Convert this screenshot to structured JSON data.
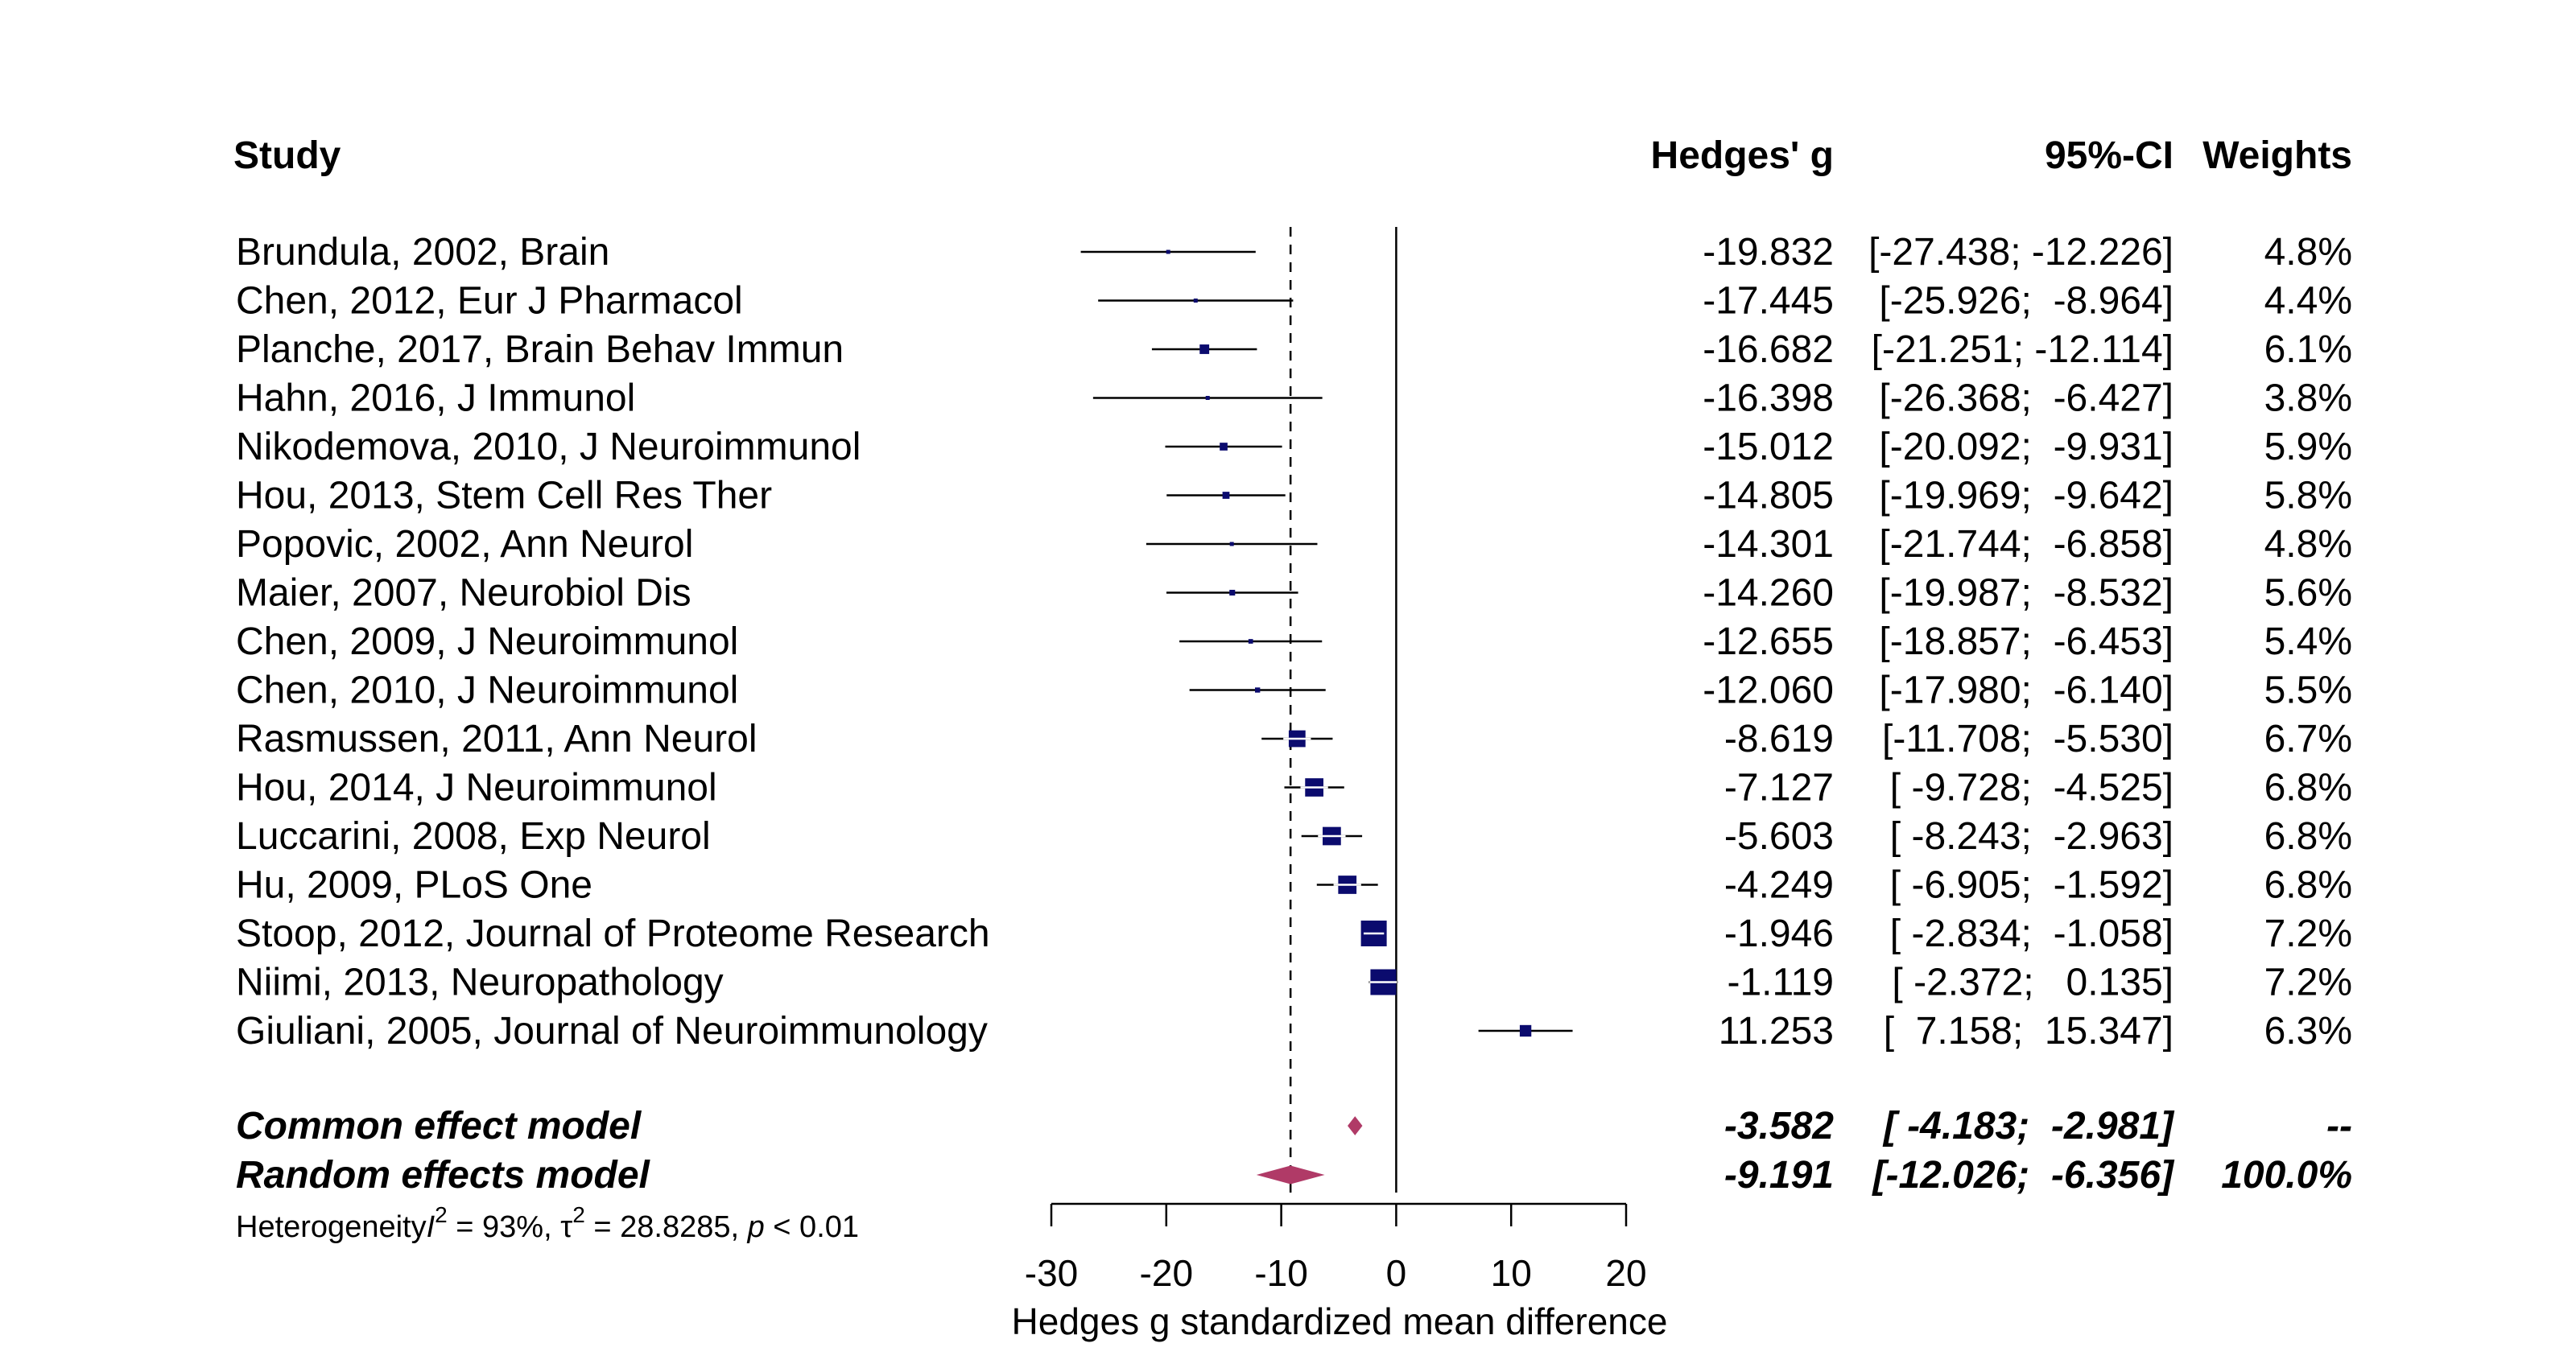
{
  "chart_data": {
    "type": "forest",
    "headers": {
      "study": "Study",
      "effect": "Hedges' g",
      "ci": "95%-CI",
      "weight": "Weights"
    },
    "studies": [
      {
        "label": "Brundula, 2002, Brain",
        "g": -19.832,
        "lower": -27.438,
        "upper": -12.226,
        "g_text": "-19.832",
        "ci_text": "[-27.438; -12.226]",
        "weight_text": "4.8%",
        "weight": 4.8
      },
      {
        "label": "Chen, 2012, Eur J Pharmacol",
        "g": -17.445,
        "lower": -25.926,
        "upper": -8.964,
        "g_text": "-17.445",
        "ci_text": "[-25.926;  -8.964]",
        "weight_text": "4.4%",
        "weight": 4.4
      },
      {
        "label": "Planche, 2017, Brain Behav Immun",
        "g": -16.682,
        "lower": -21.251,
        "upper": -12.114,
        "g_text": "-16.682",
        "ci_text": "[-21.251; -12.114]",
        "weight_text": "6.1%",
        "weight": 6.1
      },
      {
        "label": "Hahn, 2016, J Immunol",
        "g": -16.398,
        "lower": -26.368,
        "upper": -6.427,
        "g_text": "-16.398",
        "ci_text": "[-26.368;  -6.427]",
        "weight_text": "3.8%",
        "weight": 3.8
      },
      {
        "label": "Nikodemova, 2010, J Neuroimmunol",
        "g": -15.012,
        "lower": -20.092,
        "upper": -9.931,
        "g_text": "-15.012",
        "ci_text": "[-20.092;  -9.931]",
        "weight_text": "5.9%",
        "weight": 5.9
      },
      {
        "label": "Hou, 2013, Stem Cell Res Ther",
        "g": -14.805,
        "lower": -19.969,
        "upper": -9.642,
        "g_text": "-14.805",
        "ci_text": "[-19.969;  -9.642]",
        "weight_text": "5.8%",
        "weight": 5.8
      },
      {
        "label": "Popovic, 2002, Ann Neurol",
        "g": -14.301,
        "lower": -21.744,
        "upper": -6.858,
        "g_text": "-14.301",
        "ci_text": "[-21.744;  -6.858]",
        "weight_text": "4.8%",
        "weight": 4.8
      },
      {
        "label": "Maier, 2007, Neurobiol Dis",
        "g": -14.26,
        "lower": -19.987,
        "upper": -8.532,
        "g_text": "-14.260",
        "ci_text": "[-19.987;  -8.532]",
        "weight_text": "5.6%",
        "weight": 5.6
      },
      {
        "label": "Chen, 2009, J Neuroimmunol",
        "g": -12.655,
        "lower": -18.857,
        "upper": -6.453,
        "g_text": "-12.655",
        "ci_text": "[-18.857;  -6.453]",
        "weight_text": "5.4%",
        "weight": 5.4
      },
      {
        "label": "Chen, 2010, J Neuroimmunol",
        "g": -12.06,
        "lower": -17.98,
        "upper": -6.14,
        "g_text": "-12.060",
        "ci_text": "[-17.980;  -6.140]",
        "weight_text": "5.5%",
        "weight": 5.5
      },
      {
        "label": "Rasmussen, 2011, Ann Neurol",
        "g": -8.619,
        "lower": -11.708,
        "upper": -5.53,
        "g_text": "-8.619",
        "ci_text": "[-11.708;  -5.530]",
        "weight_text": "6.7%",
        "weight": 6.7
      },
      {
        "label": "Hou, 2014, J Neuroimmunol",
        "g": -7.127,
        "lower": -9.728,
        "upper": -4.525,
        "g_text": "-7.127",
        "ci_text": "[ -9.728;  -4.525]",
        "weight_text": "6.8%",
        "weight": 6.8
      },
      {
        "label": "Luccarini, 2008, Exp Neurol",
        "g": -5.603,
        "lower": -8.243,
        "upper": -2.963,
        "g_text": "-5.603",
        "ci_text": "[ -8.243;  -2.963]",
        "weight_text": "6.8%",
        "weight": 6.8
      },
      {
        "label": "Hu, 2009, PLoS One",
        "g": -4.249,
        "lower": -6.905,
        "upper": -1.592,
        "g_text": "-4.249",
        "ci_text": "[ -6.905;  -1.592]",
        "weight_text": "6.8%",
        "weight": 6.8
      },
      {
        "label": "Stoop, 2012, Journal of Proteome Research",
        "g": -1.946,
        "lower": -2.834,
        "upper": -1.058,
        "g_text": "-1.946",
        "ci_text": "[ -2.834;  -1.058]",
        "weight_text": "7.2%",
        "weight": 7.2
      },
      {
        "label": "Niimi, 2013, Neuropathology",
        "g": -1.119,
        "lower": -2.372,
        "upper": 0.135,
        "g_text": "-1.119",
        "ci_text": "[ -2.372;   0.135]",
        "weight_text": "7.2%",
        "weight": 7.2
      },
      {
        "label": "Giuliani, 2005, Journal of Neuroimmunology",
        "g": 11.253,
        "lower": 7.158,
        "upper": 15.347,
        "g_text": "11.253",
        "ci_text": "[  7.158;  15.347]",
        "weight_text": "6.3%",
        "weight": 6.3
      }
    ],
    "models": [
      {
        "label": "Common effect model",
        "g": -3.582,
        "lower": -4.183,
        "upper": -2.981,
        "g_text": "-3.582",
        "ci_text": "[ -4.183;  -2.981]",
        "weight_text": "--",
        "color": "#b03a67"
      },
      {
        "label": "Random effects model",
        "g": -9.191,
        "lower": -12.026,
        "upper": -6.356,
        "g_text": "-9.191",
        "ci_text": "[-12.026;  -6.356]",
        "weight_text": "100.0%",
        "color": "#b03a67"
      }
    ],
    "heterogeneity": {
      "prefix": "Heterogeneity",
      "i2_symbol": "I",
      "i2_value": " = 93%, ",
      "tau_symbol": "τ",
      "tau_value": " = 28.8285, ",
      "p_symbol": "p",
      "p_value": " < 0.01"
    },
    "x_axis": {
      "label": "Hedges g standardized mean difference",
      "ticks": [
        -30,
        -20,
        -10,
        0,
        10,
        20
      ],
      "range": [
        -30,
        20
      ]
    },
    "reference_line": 0,
    "colors": {
      "square": "#0b0b6e",
      "diamond": "#b03a67",
      "line": "#000000"
    }
  }
}
